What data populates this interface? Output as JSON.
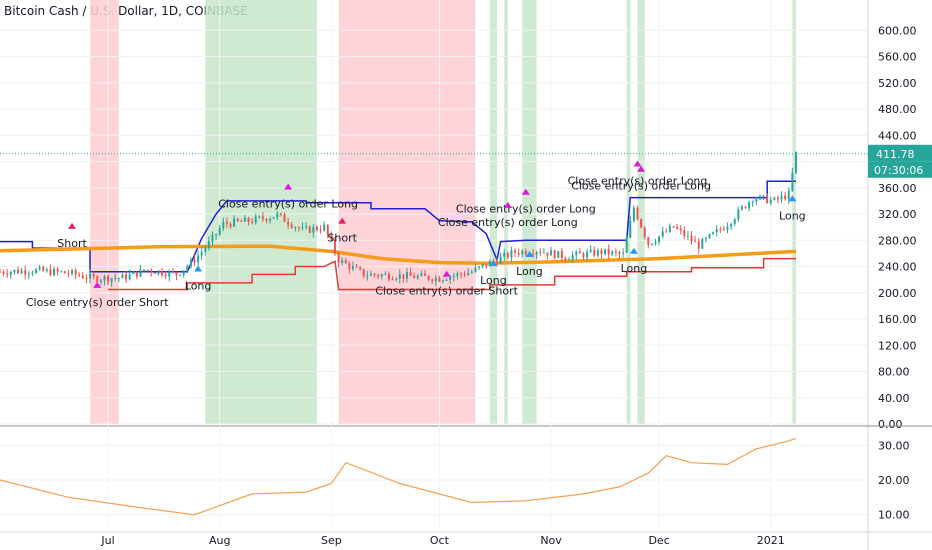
{
  "title": "Bitcoin Cash / U.S. Dollar, 1D, COINBASE",
  "colors": {
    "price_line": "#2196f3",
    "candle_up": "#26a69a",
    "candle_down": "#ef5350",
    "upper_channel": "#1f1fd6",
    "lower_channel": "#e53935",
    "moving_average": "#f59b1a",
    "indicator": "#f5a050",
    "long_marker": "#2196f3",
    "short_marker": "#e91e63",
    "close_marker": "#d81bd8",
    "green_zone": "#c8e6c9",
    "red_zone": "#ffcdd2"
  },
  "price_label": "411.78",
  "countdown_label": "07:30:06",
  "chart_data": [
    {
      "type": "candlestick",
      "title": "Bitcoin Cash / U.S. Dollar, 1D, COINBASE",
      "x_domain": [
        "2020-06-01",
        "2021-01-28"
      ],
      "x_ticks": [
        {
          "label": "Jul",
          "date": "2020-07-01"
        },
        {
          "label": "Aug",
          "date": "2020-08-01"
        },
        {
          "label": "Sep",
          "date": "2020-09-01"
        },
        {
          "label": "Oct",
          "date": "2020-10-01"
        },
        {
          "label": "Nov",
          "date": "2020-11-01"
        },
        {
          "label": "Dec",
          "date": "2020-12-01"
        },
        {
          "label": "2021",
          "date": "2021-01-01"
        }
      ],
      "ylim": [
        0,
        640
      ],
      "y_ticks": [
        "0.00",
        "40.00",
        "80.00",
        "120.00",
        "160.00",
        "200.00",
        "240.00",
        "280.00",
        "320.00",
        "360.00",
        "400.00",
        "440.00",
        "480.00",
        "520.00",
        "560.00",
        "600.00"
      ],
      "last_price": 411.78,
      "price_path": [
        {
          "date": "2020-06-01",
          "close": 232
        },
        {
          "date": "2020-06-10",
          "close": 234
        },
        {
          "date": "2020-06-20",
          "close": 230
        },
        {
          "date": "2020-06-27",
          "close": 222
        },
        {
          "date": "2020-07-05",
          "close": 223
        },
        {
          "date": "2020-07-12",
          "close": 235
        },
        {
          "date": "2020-07-20",
          "close": 228
        },
        {
          "date": "2020-07-24",
          "close": 245
        },
        {
          "date": "2020-07-29",
          "close": 275
        },
        {
          "date": "2020-08-02",
          "close": 305
        },
        {
          "date": "2020-08-10",
          "close": 310
        },
        {
          "date": "2020-08-17",
          "close": 318
        },
        {
          "date": "2020-08-24",
          "close": 295
        },
        {
          "date": "2020-08-30",
          "close": 300
        },
        {
          "date": "2020-09-03",
          "close": 250
        },
        {
          "date": "2020-09-10",
          "close": 228
        },
        {
          "date": "2020-09-20",
          "close": 226
        },
        {
          "date": "2020-10-01",
          "close": 222
        },
        {
          "date": "2020-10-10",
          "close": 232
        },
        {
          "date": "2020-10-16",
          "close": 248
        },
        {
          "date": "2020-10-22",
          "close": 262
        },
        {
          "date": "2020-10-28",
          "close": 265
        },
        {
          "date": "2020-11-05",
          "close": 255
        },
        {
          "date": "2020-11-15",
          "close": 262
        },
        {
          "date": "2020-11-21",
          "close": 258
        },
        {
          "date": "2020-11-24",
          "close": 330
        },
        {
          "date": "2020-11-28",
          "close": 275
        },
        {
          "date": "2020-12-05",
          "close": 300
        },
        {
          "date": "2020-12-12",
          "close": 272
        },
        {
          "date": "2020-12-20",
          "close": 305
        },
        {
          "date": "2020-12-27",
          "close": 345
        },
        {
          "date": "2021-01-02",
          "close": 340
        },
        {
          "date": "2021-01-06",
          "close": 350
        },
        {
          "date": "2021-01-08",
          "close": 411.78
        }
      ],
      "upper_channel": [
        {
          "date": "2020-06-01",
          "close": 278
        },
        {
          "date": "2020-06-10",
          "close": 278
        },
        {
          "date": "2020-06-10",
          "close": 268
        },
        {
          "date": "2020-06-26",
          "close": 268
        },
        {
          "date": "2020-06-26",
          "close": 232
        },
        {
          "date": "2020-07-23",
          "close": 232
        },
        {
          "date": "2020-07-27",
          "close": 283
        },
        {
          "date": "2020-07-31",
          "close": 320
        },
        {
          "date": "2020-08-03",
          "close": 340
        },
        {
          "date": "2020-08-25",
          "close": 340
        },
        {
          "date": "2020-08-25",
          "close": 337
        },
        {
          "date": "2020-09-12",
          "close": 337
        },
        {
          "date": "2020-09-12",
          "close": 328
        },
        {
          "date": "2020-09-27",
          "close": 328
        },
        {
          "date": "2020-10-01",
          "close": 310
        },
        {
          "date": "2020-10-10",
          "close": 308
        },
        {
          "date": "2020-10-14",
          "close": 290
        },
        {
          "date": "2020-10-17",
          "close": 250
        },
        {
          "date": "2020-10-18",
          "close": 278
        },
        {
          "date": "2020-10-25",
          "close": 280
        },
        {
          "date": "2020-11-22",
          "close": 280
        },
        {
          "date": "2020-11-23",
          "close": 345
        },
        {
          "date": "2020-12-31",
          "close": 345
        },
        {
          "date": "2020-12-31",
          "close": 370
        },
        {
          "date": "2021-01-08",
          "close": 370
        }
      ],
      "lower_channel": [
        {
          "date": "2020-07-01",
          "close": 205
        },
        {
          "date": "2020-07-23",
          "close": 205
        },
        {
          "date": "2020-07-23",
          "close": 215
        },
        {
          "date": "2020-08-10",
          "close": 215
        },
        {
          "date": "2020-08-10",
          "close": 228
        },
        {
          "date": "2020-08-22",
          "close": 228
        },
        {
          "date": "2020-08-22",
          "close": 240
        },
        {
          "date": "2020-08-30",
          "close": 240
        },
        {
          "date": "2020-09-02",
          "close": 248
        },
        {
          "date": "2020-09-03",
          "close": 205
        },
        {
          "date": "2020-10-15",
          "close": 205
        },
        {
          "date": "2020-10-15",
          "close": 212
        },
        {
          "date": "2020-11-02",
          "close": 212
        },
        {
          "date": "2020-11-02",
          "close": 225
        },
        {
          "date": "2020-11-22",
          "close": 225
        },
        {
          "date": "2020-11-22",
          "close": 232
        },
        {
          "date": "2020-12-10",
          "close": 232
        },
        {
          "date": "2020-12-10",
          "close": 238
        },
        {
          "date": "2020-12-30",
          "close": 238
        },
        {
          "date": "2020-12-30",
          "close": 252
        },
        {
          "date": "2021-01-08",
          "close": 252
        }
      ],
      "moving_average": [
        {
          "date": "2020-06-01",
          "close": 264
        },
        {
          "date": "2020-07-15",
          "close": 270
        },
        {
          "date": "2020-08-15",
          "close": 271
        },
        {
          "date": "2020-09-01",
          "close": 263
        },
        {
          "date": "2020-09-15",
          "close": 252
        },
        {
          "date": "2020-10-01",
          "close": 246
        },
        {
          "date": "2020-10-15",
          "close": 245
        },
        {
          "date": "2020-11-01",
          "close": 247
        },
        {
          "date": "2020-12-01",
          "close": 252
        },
        {
          "date": "2021-01-08",
          "close": 263
        }
      ],
      "zones": [
        {
          "color": "red",
          "start": "2020-06-26",
          "end": "2020-07-04"
        },
        {
          "color": "green",
          "start": "2020-07-28",
          "end": "2020-08-28"
        },
        {
          "color": "red",
          "start": "2020-09-03",
          "end": "2020-10-11"
        },
        {
          "color": "green",
          "start": "2020-10-15",
          "end": "2020-10-17"
        },
        {
          "color": "green",
          "start": "2020-10-19",
          "end": "2020-10-20"
        },
        {
          "color": "green",
          "start": "2020-10-24",
          "end": "2020-10-28"
        },
        {
          "color": "green",
          "start": "2020-11-22",
          "end": "2020-11-23"
        },
        {
          "color": "green",
          "start": "2020-11-25",
          "end": "2020-11-27"
        },
        {
          "color": "green",
          "start": "2021-01-07",
          "end": "2021-01-08"
        }
      ],
      "trade_labels": [
        {
          "text": "Short",
          "date": "2020-06-21",
          "value": 270
        },
        {
          "text": "Close entry(s) order Short",
          "date": "2020-06-28",
          "value": 180
        },
        {
          "text": "Long",
          "date": "2020-07-26",
          "value": 205
        },
        {
          "text": "Close entry(s) order Long",
          "date": "2020-08-20",
          "value": 330
        },
        {
          "text": "Short",
          "date": "2020-09-04",
          "value": 278
        },
        {
          "text": "Close entry(s) order Short",
          "date": "2020-10-03",
          "value": 197
        },
        {
          "text": "Close entry(s) order Long",
          "date": "2020-10-25",
          "value": 322
        },
        {
          "text": "Close entry(s) order Long",
          "date": "2020-10-20",
          "value": 302
        },
        {
          "text": "Long",
          "date": "2020-10-16",
          "value": 213
        },
        {
          "text": "Long",
          "date": "2020-10-26",
          "value": 227
        },
        {
          "text": "Close entry(s) order Long",
          "date": "2020-11-25",
          "value": 365
        },
        {
          "text": "Close entry(s) order Long",
          "date": "2020-11-26",
          "value": 357
        },
        {
          "text": "Long",
          "date": "2020-11-24",
          "value": 232
        },
        {
          "text": "Long",
          "date": "2021-01-07",
          "value": 312
        }
      ]
    },
    {
      "type": "line",
      "x_domain": [
        "2020-06-01",
        "2021-01-28"
      ],
      "ylim": [
        5,
        35
      ],
      "y_ticks": [
        "10.00",
        "20.00",
        "30.00"
      ],
      "points": [
        {
          "date": "2020-06-01",
          "value": 20
        },
        {
          "date": "2020-06-20",
          "value": 15
        },
        {
          "date": "2020-07-10",
          "value": 12
        },
        {
          "date": "2020-07-25",
          "value": 10
        },
        {
          "date": "2020-08-10",
          "value": 16
        },
        {
          "date": "2020-08-25",
          "value": 16.5
        },
        {
          "date": "2020-09-01",
          "value": 19
        },
        {
          "date": "2020-09-05",
          "value": 25
        },
        {
          "date": "2020-09-20",
          "value": 19
        },
        {
          "date": "2020-10-10",
          "value": 13.5
        },
        {
          "date": "2020-10-25",
          "value": 14
        },
        {
          "date": "2020-11-10",
          "value": 16
        },
        {
          "date": "2020-11-20",
          "value": 18
        },
        {
          "date": "2020-11-28",
          "value": 22
        },
        {
          "date": "2020-12-03",
          "value": 27
        },
        {
          "date": "2020-12-10",
          "value": 25
        },
        {
          "date": "2020-12-20",
          "value": 24.5
        },
        {
          "date": "2020-12-28",
          "value": 29
        },
        {
          "date": "2021-01-05",
          "value": 31
        },
        {
          "date": "2021-01-08",
          "value": 32
        }
      ]
    }
  ]
}
